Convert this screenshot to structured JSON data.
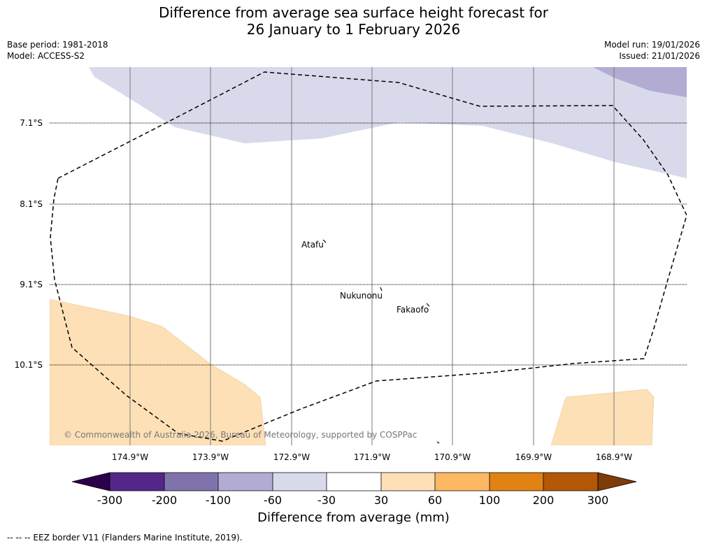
{
  "title": {
    "line1": "Difference from average sea surface height forecast for",
    "line2": "26 January to 1 February 2026"
  },
  "meta": {
    "base_period": "Base period: 1981-2018",
    "model": "Model: ACCESS-S2",
    "model_run": "Model run: 19/01/2026",
    "issued": "Issued: 21/01/2026"
  },
  "map": {
    "lat_labels": [
      "7.1°S",
      "8.1°S",
      "9.1°S",
      "10.1°S"
    ],
    "lon_labels": [
      "174.9°W",
      "173.9°W",
      "172.9°W",
      "171.9°W",
      "170.9°W",
      "169.9°W",
      "168.9°W"
    ],
    "places": [
      {
        "name": "Atafu"
      },
      {
        "name": "Nukunonu"
      },
      {
        "name": "Fakaofo"
      }
    ],
    "copyright": "© Commonwealth of Australia 2026, Bureau of Meteorology, supported by COSPPac"
  },
  "colorbar": {
    "title": "Difference from average (mm)",
    "tick_labels": [
      "-300",
      "-200",
      "-100",
      "-60",
      "-30",
      "30",
      "60",
      "100",
      "200",
      "300"
    ],
    "colors": [
      "#2d004b",
      "#542788",
      "#8073ac",
      "#b2abd2",
      "#d8daeb",
      "#ffffff",
      "#fee0b6",
      "#fdb863",
      "#e08214",
      "#b35806",
      "#7f3b08"
    ]
  },
  "footer": {
    "legend_text": "-- -- -- EEZ border V11 (Flanders Marine Institute, 2019)."
  }
}
